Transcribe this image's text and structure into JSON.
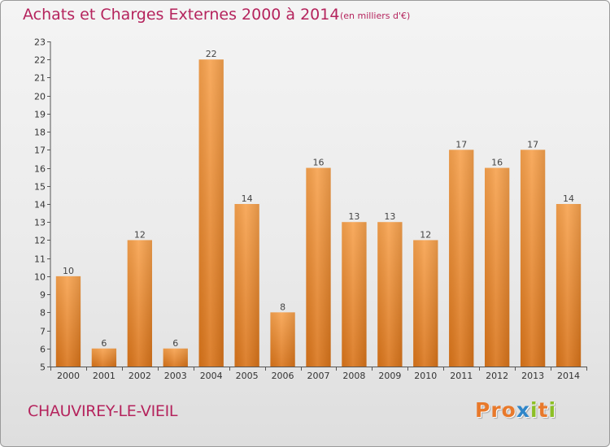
{
  "header": {
    "title": "Achats et Charges Externes 2000 à 2014",
    "unit": "(en milliers d'€)"
  },
  "footer": {
    "commune": "CHAUVIREY-LE-VIEIL",
    "logo": "Proxiti"
  },
  "colors": {
    "title": "#b5245d",
    "bar_light": "#f7a24e",
    "bar_dark": "#d9741a",
    "logo_letters": [
      "#e8792b",
      "#e8792b",
      "#e8792b",
      "#2f86c9",
      "#8cbf26",
      "#e8792b",
      "#8cbf26"
    ]
  },
  "chart_data": {
    "type": "bar",
    "categories": [
      "2000",
      "2001",
      "2002",
      "2003",
      "2004",
      "2005",
      "2006",
      "2007",
      "2008",
      "2009",
      "2010",
      "2011",
      "2012",
      "2013",
      "2014"
    ],
    "values": [
      10,
      6,
      12,
      6,
      22,
      14,
      8,
      16,
      13,
      13,
      12,
      17,
      16,
      17,
      14
    ],
    "data_labels": [
      "10",
      "6",
      "12",
      "6",
      "22",
      "14",
      "8",
      "16",
      "13",
      "13",
      "12",
      "17",
      "16",
      "17",
      "14"
    ],
    "ylim": [
      5,
      23
    ],
    "yticks": [
      5,
      6,
      7,
      8,
      9,
      10,
      11,
      12,
      13,
      14,
      15,
      16,
      17,
      18,
      19,
      20,
      21,
      22,
      23
    ],
    "ytick_labels": [
      "5",
      "6",
      "7",
      "8",
      "9",
      "10",
      "11",
      "12",
      "13",
      "14",
      "15",
      "16",
      "17",
      "18",
      "19",
      "20",
      "21",
      "22",
      "23"
    ],
    "grid": false
  }
}
